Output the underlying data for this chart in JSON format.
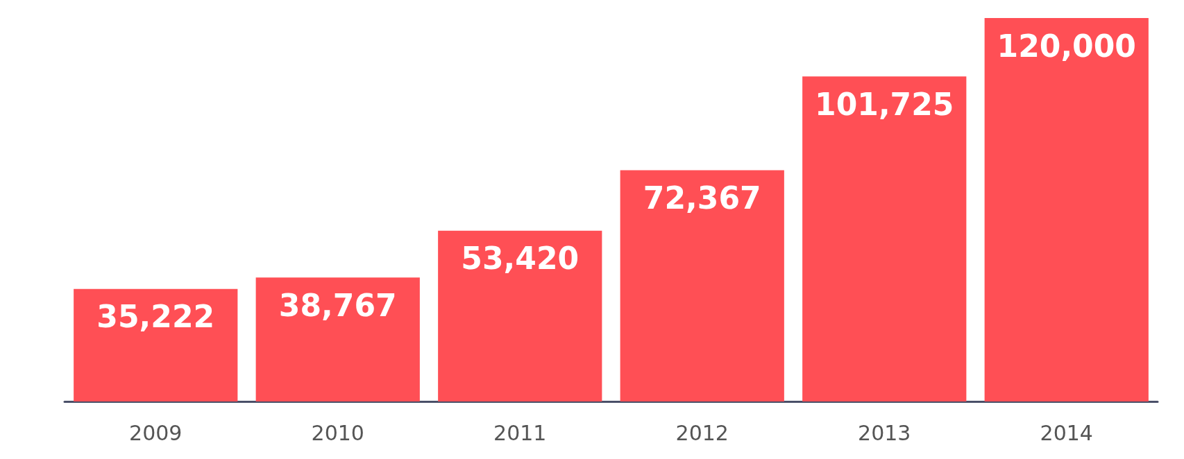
{
  "chart_data": {
    "type": "bar",
    "categories": [
      "2009",
      "2010",
      "2011",
      "2012",
      "2013",
      "2014"
    ],
    "values": [
      35222,
      38767,
      53420,
      72367,
      101725,
      120000
    ],
    "color": "#ff4f55",
    "value_labels": [
      "35,222",
      "38,767",
      "53,420",
      "72,367",
      "101,725",
      "120,000"
    ]
  }
}
